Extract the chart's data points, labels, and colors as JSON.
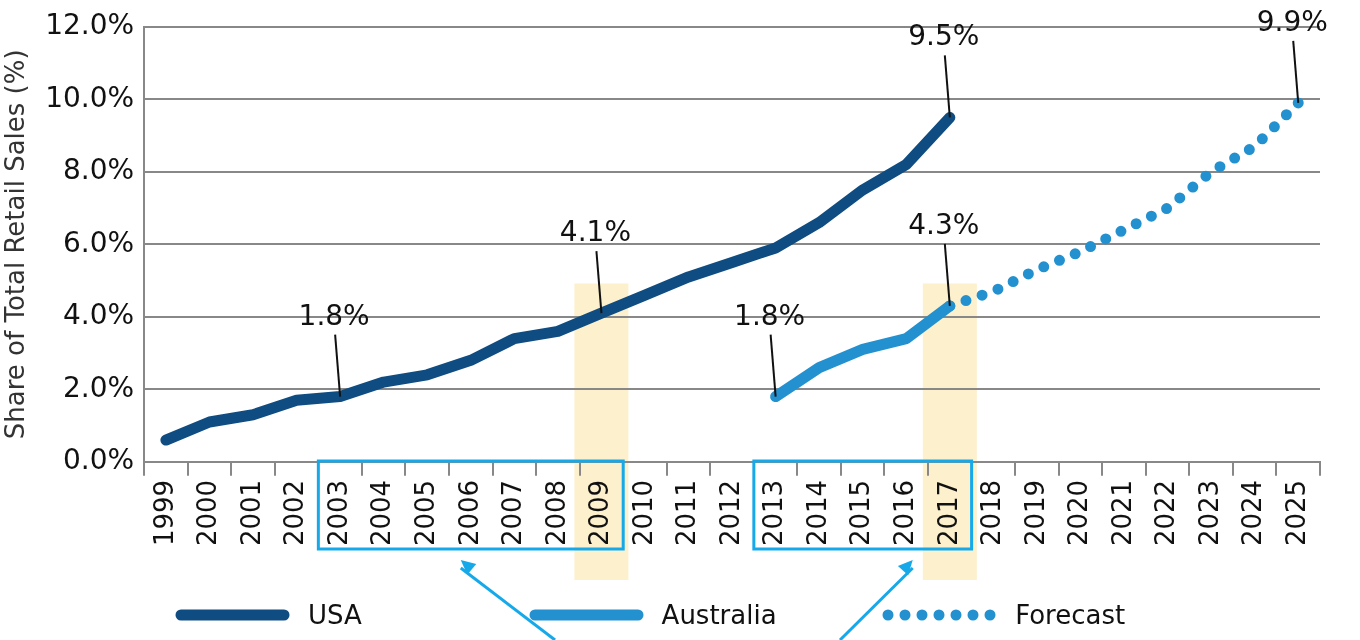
{
  "chart_data": {
    "type": "line",
    "ylabel": "Share of Total Retail Sales (%)",
    "categories": [
      "1999",
      "2000",
      "2001",
      "2002",
      "2003",
      "2004",
      "2005",
      "2006",
      "2007",
      "2008",
      "2009",
      "2010",
      "2011",
      "2012",
      "2013",
      "2014",
      "2015",
      "2016",
      "2017",
      "2018",
      "2019",
      "2020",
      "2021",
      "2022",
      "2023",
      "2024",
      "2025"
    ],
    "series": [
      {
        "name": "USA",
        "color": "#0f4c81",
        "values": [
          0.6,
          1.1,
          1.3,
          1.7,
          1.8,
          2.2,
          2.4,
          2.8,
          3.4,
          3.6,
          4.1,
          4.6,
          5.1,
          5.5,
          5.9,
          6.6,
          7.5,
          8.2,
          9.5,
          null,
          null,
          null,
          null,
          null,
          null,
          null,
          null
        ]
      },
      {
        "name": "Australia",
        "color": "#2391d0",
        "values": [
          null,
          null,
          null,
          null,
          null,
          null,
          null,
          null,
          null,
          null,
          null,
          null,
          null,
          null,
          1.8,
          2.6,
          3.1,
          3.4,
          4.3,
          null,
          null,
          null,
          null,
          null,
          null,
          null,
          null
        ]
      },
      {
        "name": "Forecast",
        "color": "#2391d0",
        "line_style": "dotted",
        "values": [
          null,
          null,
          null,
          null,
          null,
          null,
          null,
          null,
          null,
          null,
          null,
          null,
          null,
          null,
          null,
          null,
          null,
          null,
          4.3,
          4.7,
          5.3,
          5.8,
          6.4,
          7.0,
          8.0,
          8.7,
          9.9
        ]
      }
    ],
    "ylim": [
      0,
      12
    ],
    "yticks": [
      {
        "value": 0,
        "label": "0.0%"
      },
      {
        "value": 2,
        "label": "2.0%"
      },
      {
        "value": 4,
        "label": "4.0%"
      },
      {
        "value": 6,
        "label": "6.0%"
      },
      {
        "value": 8,
        "label": "8.0%"
      },
      {
        "value": 10,
        "label": "10.0%"
      },
      {
        "value": 12,
        "label": "12.0%"
      }
    ],
    "grid": "y",
    "legend": "bottom",
    "marker": "none",
    "bands": [
      {
        "axis": "x",
        "from": "2009",
        "to": "2009",
        "color": "#fdf0cc"
      },
      {
        "axis": "x",
        "from": "2017",
        "to": "2017",
        "color": "#fdf0cc"
      }
    ],
    "annotations": [
      {
        "text": "1.8%",
        "x": "2003",
        "y": 1.8
      },
      {
        "text": "4.1%",
        "x": "2009",
        "y": 4.1
      },
      {
        "text": "9.5%",
        "x": "2017",
        "y": 9.5
      },
      {
        "text": "1.8%",
        "x": "2013",
        "y": 1.8
      },
      {
        "text": "4.3%",
        "x": "2017",
        "y": 4.3
      },
      {
        "text": "9.9%",
        "x": "2025",
        "y": 9.9
      }
    ]
  }
}
